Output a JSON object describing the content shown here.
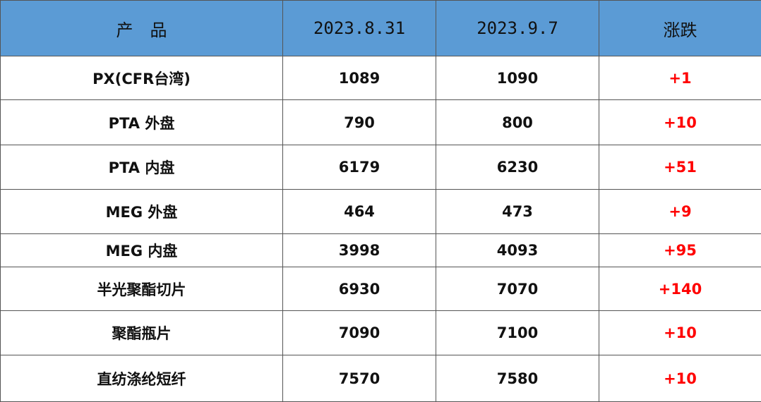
{
  "table": {
    "header": [
      "产　品",
      "2023.8.31",
      "2023.9.7",
      "涨跌"
    ],
    "rows": [
      [
        "PX(CFR台湾)",
        1089,
        1090,
        "+1"
      ],
      [
        "PTA 外盘",
        790,
        800,
        "+10"
      ],
      [
        "PTA 内盘",
        6179,
        6230,
        "+51"
      ],
      [
        "MEG 外盘",
        464,
        473,
        "+9"
      ],
      [
        "MEG 内盘",
        3998,
        4093,
        "+95"
      ],
      [
        "半光聚酯切片",
        6930,
        7070,
        "+140"
      ],
      [
        "聚酯瓶片",
        7090,
        7100,
        "+10"
      ],
      [
        "直纺涤纶短纤",
        7570,
        7580,
        "+10"
      ]
    ]
  }
}
